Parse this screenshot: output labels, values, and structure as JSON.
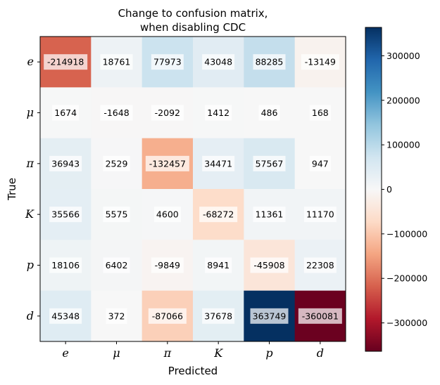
{
  "chart_data": {
    "type": "heatmap",
    "title_lines": [
      "Change to confusion matrix,",
      "when disabling CDC"
    ],
    "xlabel": "Predicted",
    "ylabel": "True",
    "x_categories": [
      "e",
      "μ",
      "π",
      "K",
      "p",
      "d"
    ],
    "y_categories": [
      "e",
      "μ",
      "π",
      "K",
      "p",
      "d"
    ],
    "values": [
      [
        -214918,
        18761,
        77973,
        43048,
        88285,
        -13149
      ],
      [
        1674,
        -1648,
        -2092,
        1412,
        486,
        168
      ],
      [
        36943,
        2529,
        -132457,
        34471,
        57567,
        947
      ],
      [
        35566,
        5575,
        4600,
        -68272,
        11361,
        11170
      ],
      [
        18106,
        6402,
        -9849,
        8941,
        -45908,
        22308
      ],
      [
        45348,
        372,
        -87066,
        37678,
        363749,
        -360081
      ]
    ],
    "colormap": "RdBu",
    "vmin": -363749,
    "vmax": 363749,
    "colorbar_ticks": [
      300000,
      200000,
      100000,
      0,
      -100000,
      -200000,
      -300000
    ],
    "colorbar_tick_labels": [
      "300000",
      "200000",
      "100000",
      "0",
      "−100000",
      "−200000",
      "−300000"
    ]
  }
}
